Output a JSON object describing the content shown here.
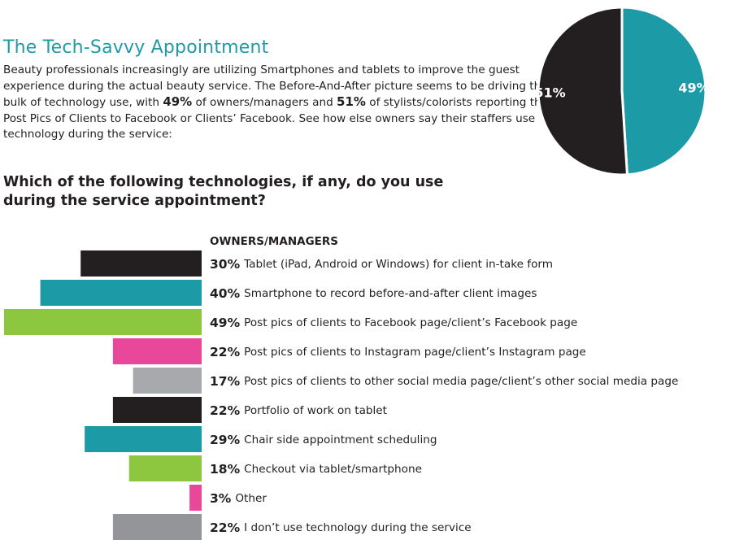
{
  "header": {
    "title": "The Tech-Savvy Appointment",
    "intro": [
      {
        "text": "Beauty professionals increasingly are utilizing Smartphones and tablets to improve the guest experience during the actual beauty service. The Before-And-After picture seems to be driving the bulk of technology use, with ",
        "bold": false
      },
      {
        "text": "49%",
        "bold": true
      },
      {
        "text": " of owners/managers and ",
        "bold": false
      },
      {
        "text": "51%",
        "bold": true
      },
      {
        "text": " of stylists/colorists reporting they Post Pics of Clients to Facebook or Clients’ Facebook. See how else owners say their staffers use technology during the service:",
        "bold": false
      }
    ]
  },
  "question": "Which of the following technologies, if any, do you use during the service appointment?",
  "chart_data": [
    {
      "type": "pie",
      "values": [
        49,
        51
      ],
      "value_labels": [
        "49%",
        "51%"
      ],
      "colors": [
        "#1c9aa6",
        "#231f20"
      ]
    },
    {
      "type": "bar",
      "orientation": "horizontal",
      "group_label": "OWNERS/MANAGERS",
      "categories": [
        "Tablet (iPad, Android or Windows) for client in-take form",
        "Smartphone to record before-and-after client images",
        "Post pics of clients to Facebook page/client’s Facebook page",
        "Post pics of clients to Instagram page/client’s Instagram page",
        "Post pics of clients to other social media page/client’s other social media page",
        "Portfolio of work on tablet",
        "Chair side appointment scheduling",
        "Checkout via tablet/smartphone",
        "Other",
        "I don’t use technology during the service"
      ],
      "values": [
        30,
        40,
        49,
        22,
        17,
        22,
        29,
        18,
        3,
        22
      ],
      "value_labels": [
        "30%",
        "40%",
        "49%",
        "22%",
        "17%",
        "22%",
        "29%",
        "18%",
        "3%",
        "22%"
      ],
      "colors": [
        "#231f20",
        "#1c9aa6",
        "#8dc63f",
        "#e9489a",
        "#a7a9ac",
        "#231f20",
        "#1c9aa6",
        "#8dc63f",
        "#e9489a",
        "#939598"
      ],
      "xlim": [
        0,
        50
      ]
    }
  ]
}
